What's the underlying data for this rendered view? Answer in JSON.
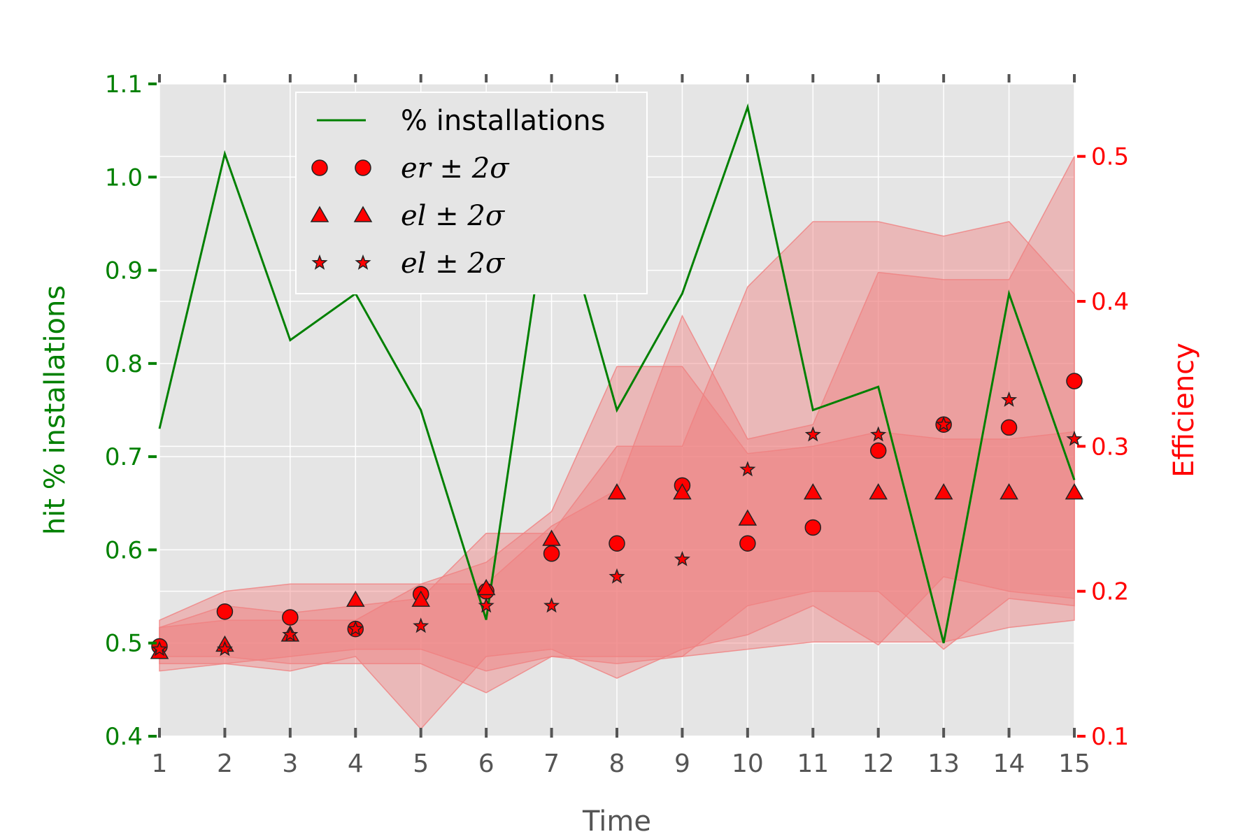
{
  "colors": {
    "plot_bg": "#e5e5e5",
    "grid": "#ffffff",
    "left_axis": "#008000",
    "right_axis": "#ff0000",
    "band_fill": "#f08080",
    "marker_fill": "#ff0000",
    "marker_edge": "#222222",
    "tick_mark": "#555555"
  },
  "chart_data": {
    "type": "line",
    "xlabel": "Time",
    "ylabel_left": "hit % installations",
    "ylabel_right": "Efficiency",
    "x": [
      1,
      2,
      3,
      4,
      5,
      6,
      7,
      8,
      9,
      10,
      11,
      12,
      13,
      14,
      15
    ],
    "xlim": [
      1,
      15
    ],
    "ylim_left": [
      0.4,
      1.1
    ],
    "ylim_right": [
      0.1,
      0.55
    ],
    "yticks_left": [
      "0.4",
      "0.5",
      "0.6",
      "0.7",
      "0.8",
      "0.9",
      "1.0",
      "1.1"
    ],
    "yticks_right": [
      "0.1",
      "0.2",
      "0.3",
      "0.4",
      "0.5"
    ],
    "grid": true,
    "legend": {
      "position": "top-left",
      "entries": [
        {
          "label": "% installations",
          "marker": "line"
        },
        {
          "label_main": "er",
          "label_tail": " ± 2σ",
          "marker": "circle"
        },
        {
          "label_main": "el",
          "label_tail": " ± 2σ",
          "marker": "triangle"
        },
        {
          "label_main": "el",
          "label_tail": " ± 2σ",
          "marker": "star"
        }
      ]
    },
    "series": [
      {
        "name": "% installations",
        "axis": "left",
        "style": "line",
        "values": [
          0.73,
          1.025,
          0.825,
          0.875,
          0.75,
          0.525,
          1.0,
          0.75,
          0.875,
          1.075,
          0.75,
          0.775,
          0.5,
          0.875,
          0.675
        ]
      },
      {
        "name": "er",
        "axis": "right",
        "style": "circle",
        "values": [
          0.162,
          0.186,
          0.182,
          0.174,
          0.198,
          0.2,
          0.226,
          0.233,
          0.273,
          0.233,
          0.244,
          0.297,
          0.315,
          0.313,
          0.345
        ],
        "band_lower": [
          0.155,
          0.155,
          0.15,
          0.15,
          0.15,
          0.13,
          0.155,
          0.15,
          0.155,
          0.19,
          0.2,
          0.2,
          0.16,
          0.195,
          0.19
        ],
        "band_upper": [
          0.18,
          0.2,
          0.205,
          0.205,
          0.205,
          0.22,
          0.255,
          0.355,
          0.355,
          0.295,
          0.3,
          0.31,
          0.305,
          0.305,
          0.31
        ]
      },
      {
        "name": "el",
        "axis": "right",
        "style": "triangle",
        "values": [
          0.158,
          0.163,
          0.17,
          0.194,
          0.194,
          0.202,
          0.236,
          0.268,
          0.268,
          0.25,
          0.268,
          0.268,
          0.268,
          0.268,
          0.268
        ],
        "band_lower": [
          0.145,
          0.15,
          0.145,
          0.155,
          0.105,
          0.155,
          0.16,
          0.14,
          0.16,
          0.17,
          0.19,
          0.163,
          0.21,
          0.2,
          0.195
        ],
        "band_upper": [
          0.175,
          0.19,
          0.185,
          0.19,
          0.195,
          0.24,
          0.24,
          0.3,
          0.3,
          0.41,
          0.455,
          0.455,
          0.445,
          0.455,
          0.405
        ]
      },
      {
        "name": "el",
        "axis": "right",
        "style": "star",
        "values": [
          0.16,
          0.16,
          0.17,
          0.174,
          0.176,
          0.19,
          0.19,
          0.21,
          0.222,
          0.284,
          0.308,
          0.308,
          0.315,
          0.332,
          0.305
        ],
        "band_lower": [
          0.15,
          0.15,
          0.155,
          0.16,
          0.16,
          0.145,
          0.155,
          0.155,
          0.155,
          0.16,
          0.165,
          0.165,
          0.165,
          0.175,
          0.18
        ],
        "band_upper": [
          0.175,
          0.18,
          0.18,
          0.18,
          0.205,
          0.205,
          0.245,
          0.27,
          0.39,
          0.305,
          0.315,
          0.42,
          0.415,
          0.415,
          0.5
        ]
      }
    ]
  }
}
